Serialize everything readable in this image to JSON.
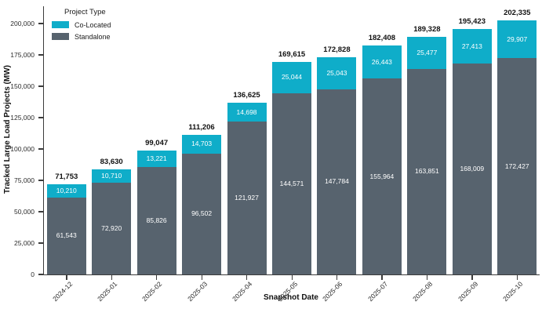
{
  "chart_data": {
    "type": "bar",
    "stacked": true,
    "title": "",
    "xlabel": "Snapshot Date",
    "ylabel": "Tracked Large Load Projects (MW)",
    "legend_title": "Project Type",
    "legend_position": "upper-left",
    "grid": false,
    "ylim": [
      0,
      200000
    ],
    "yticks": [
      0,
      25000,
      50000,
      75000,
      100000,
      125000,
      150000,
      175000,
      200000
    ],
    "categories": [
      "2024-12",
      "2025-01",
      "2025-02",
      "2025-03",
      "2025-04",
      "2025-05",
      "2025-06",
      "2025-07",
      "2025-08",
      "2025-09",
      "2025-10"
    ],
    "series": [
      {
        "name": "Co-Located",
        "color": "#0fadc9",
        "values": [
          10210,
          10710,
          13221,
          14703,
          14698,
          25044,
          25043,
          26443,
          25477,
          27413,
          29907
        ]
      },
      {
        "name": "Standalone",
        "color": "#57636e",
        "values": [
          61543,
          72920,
          85826,
          96502,
          121927,
          144571,
          147784,
          155964,
          163851,
          168009,
          172427
        ]
      }
    ],
    "totals": [
      71753,
      83630,
      99047,
      111206,
      136625,
      169615,
      172828,
      182408,
      189328,
      195423,
      202335
    ]
  },
  "colors": {
    "axis": "#3b3b3b",
    "total_label": "#111111",
    "segment_label": "#ffffff",
    "background": "#ffffff"
  }
}
